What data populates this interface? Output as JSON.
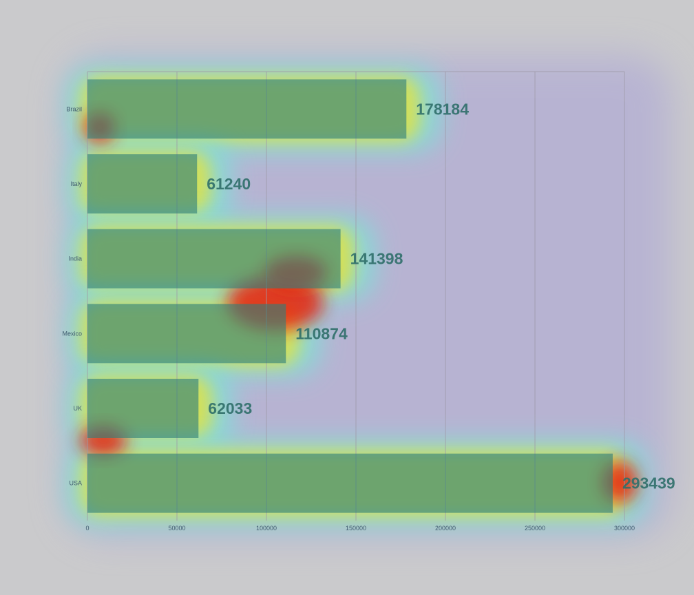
{
  "chart_data": {
    "type": "bar",
    "orientation": "horizontal",
    "categories": [
      "Brazil",
      "Italy",
      "India",
      "Mexico",
      "UK",
      "USA"
    ],
    "values": [
      178184,
      61240,
      141398,
      110874,
      62033,
      293439
    ],
    "title": "",
    "xlabel": "",
    "ylabel": "",
    "xlim": [
      0,
      300000
    ],
    "x_ticks": [
      0,
      50000,
      100000,
      150000,
      200000,
      250000,
      300000
    ],
    "x_tick_labels": [
      "0",
      "50000",
      "100000",
      "150000",
      "200000",
      "250000",
      "300000"
    ],
    "grid": true,
    "legend": "none",
    "data_labels": [
      "178184",
      "61240",
      "141398",
      "110874",
      "62033",
      "293439"
    ]
  },
  "colors": {
    "background": "#cacacc",
    "bar_fill": "#b08a3c",
    "bar_fill_dark": "#2f7f7a",
    "label_color": "#2f6f6a",
    "grid": "#9e9aa8"
  }
}
